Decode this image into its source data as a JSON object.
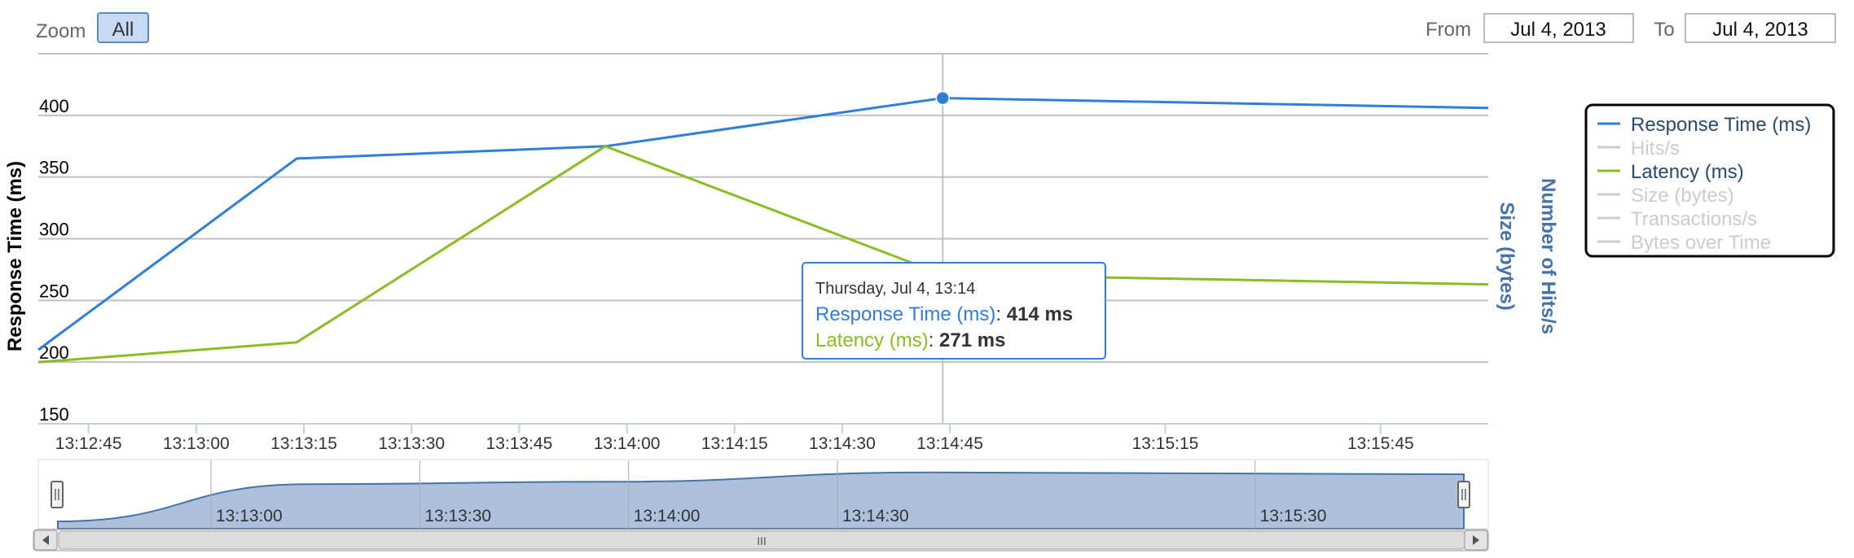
{
  "toolbar": {
    "zoom_label": "Zoom",
    "zoom_all_label": "All",
    "from_label": "From",
    "from_value": "Jul 4, 2013",
    "to_label": "To",
    "to_value": "Jul 4, 2013"
  },
  "tooltip": {
    "header": "Thursday, Jul 4, 13:14",
    "rows": [
      {
        "series": "Response Time (ms)",
        "value": "414 ms",
        "color": "#2f7ed8"
      },
      {
        "series": "Latency (ms)",
        "value": "271 ms",
        "color": "#8bbc21"
      }
    ]
  },
  "navigator": {
    "tick_labels": [
      "13:13:00",
      "13:13:30",
      "13:14:00",
      "13:14:30",
      "13:15:30"
    ],
    "scroll_grip": "III"
  },
  "chart_data": {
    "type": "line",
    "ylabel": "Response Time (ms)",
    "secondary_axis_labels": [
      "Size (bytes)",
      "Number of Hits/s"
    ],
    "ylim": [
      150,
      450
    ],
    "yticks": [
      150,
      200,
      250,
      300,
      350,
      400
    ],
    "x_range": [
      "13:12:38",
      "13:16:00"
    ],
    "xticks": [
      "13:12:45",
      "13:13:00",
      "13:13:15",
      "13:13:30",
      "13:13:45",
      "13:14:00",
      "13:14:15",
      "13:14:30",
      "13:14:45",
      "13:15:15",
      "13:15:45"
    ],
    "grid": true,
    "legend_placement": "right",
    "highlighted_x": "13:14:44",
    "series": [
      {
        "name": "Response Time (ms)",
        "color": "#2f7ed8",
        "visible": true,
        "points": [
          [
            "13:12:38",
            210
          ],
          [
            "13:13:14",
            365
          ],
          [
            "13:13:57",
            375
          ],
          [
            "13:14:44",
            414
          ],
          [
            "13:16:00",
            406
          ]
        ]
      },
      {
        "name": "Hits/s",
        "color": "#cccccc",
        "visible": false,
        "points": []
      },
      {
        "name": "Latency (ms)",
        "color": "#8bbc21",
        "visible": true,
        "points": [
          [
            "13:12:38",
            200
          ],
          [
            "13:13:14",
            216
          ],
          [
            "13:13:57",
            375
          ],
          [
            "13:14:44",
            271
          ],
          [
            "13:16:00",
            263
          ]
        ]
      },
      {
        "name": "Size (bytes)",
        "color": "#cccccc",
        "visible": false,
        "points": []
      },
      {
        "name": "Transactions/s",
        "color": "#cccccc",
        "visible": false,
        "points": []
      },
      {
        "name": "Bytes over Time",
        "color": "#cccccc",
        "visible": false,
        "points": []
      }
    ]
  }
}
